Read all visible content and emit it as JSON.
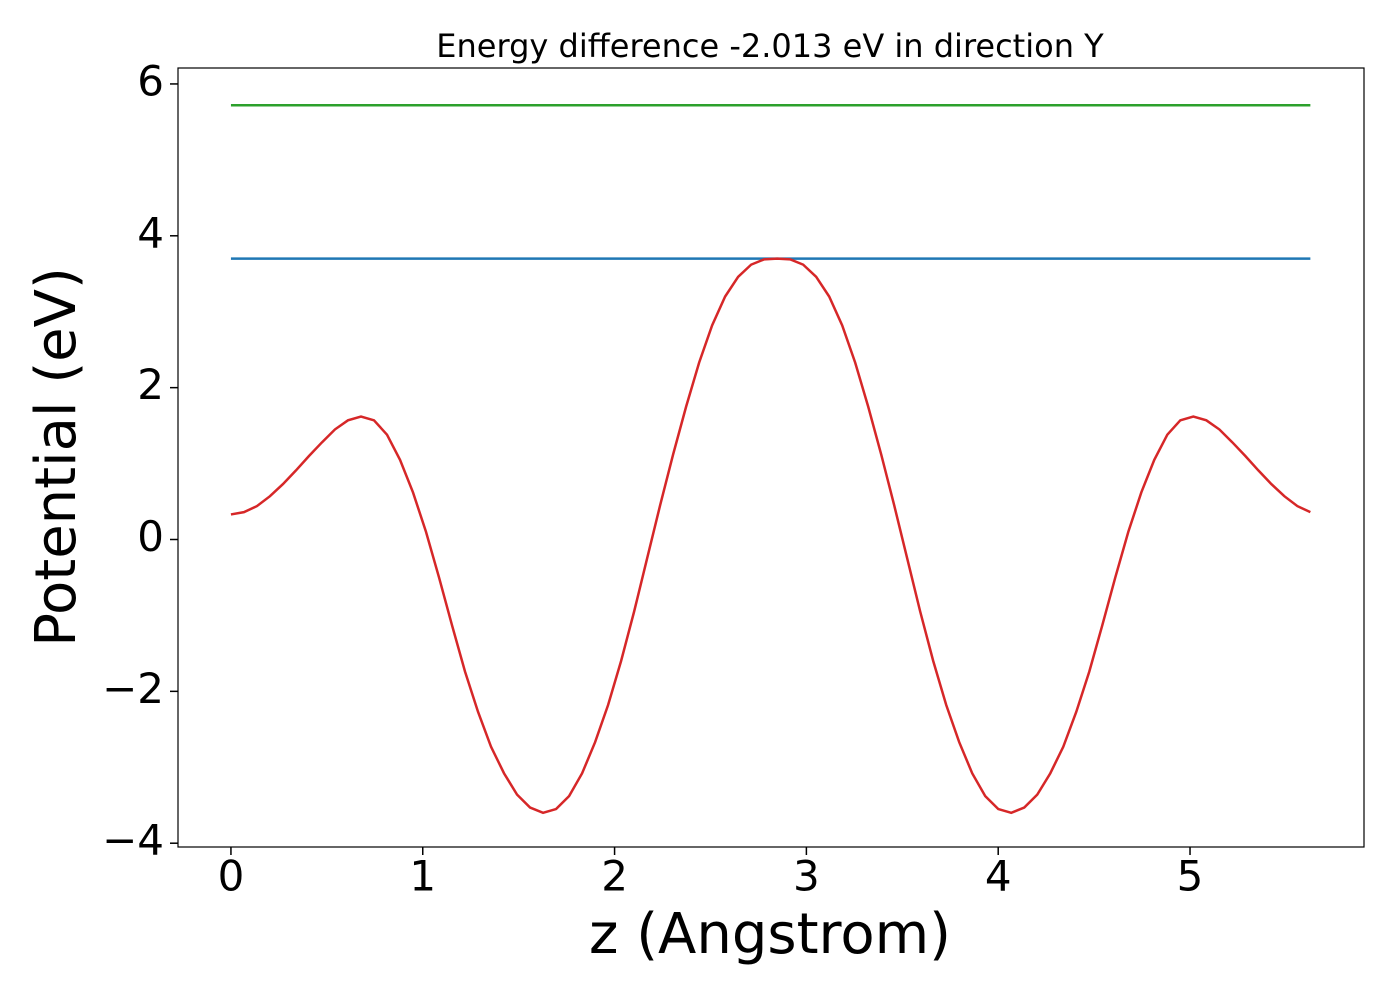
{
  "chart_data": {
    "type": "line",
    "title": "Energy difference -2.013 eV in direction Y",
    "xlabel": "z (Angstrom)",
    "ylabel": "Potential (eV)",
    "xlim": [
      -0.276,
      5.907
    ],
    "ylim": [
      -4.05,
      6.21
    ],
    "xticks": [
      0,
      1,
      2,
      3,
      4,
      5
    ],
    "yticks": [
      {
        "value": -4,
        "label": "−4"
      },
      {
        "value": -2,
        "label": "−2"
      },
      0,
      2,
      4,
      6
    ],
    "series": [
      {
        "color": "#1f77b4",
        "x": [
          0,
          5.6274
        ],
        "values": [
          3.7,
          3.7
        ]
      },
      {
        "color": "#2ca02c",
        "x": [
          0,
          5.6274
        ],
        "values": [
          5.72,
          5.72
        ]
      },
      {
        "color": "#d62728",
        "x": [
          0,
          0.0678,
          0.1356,
          0.2034,
          0.2712,
          0.339,
          0.4068,
          0.4746,
          0.5424,
          0.6102,
          0.678,
          0.7458,
          0.8136,
          0.8814,
          0.9492,
          1.017,
          1.0848,
          1.1526,
          1.2204,
          1.2882,
          1.356,
          1.4238,
          1.4916,
          1.5594,
          1.6272,
          1.695,
          1.7628,
          1.8306,
          1.8984,
          1.9662,
          2.034,
          2.1018,
          2.1696,
          2.2374,
          2.3052,
          2.373,
          2.4408,
          2.5086,
          2.5764,
          2.6442,
          2.712,
          2.7798,
          2.8476,
          2.9154,
          2.9832,
          3.051,
          3.1188,
          3.1866,
          3.2544,
          3.3222,
          3.39,
          3.4578,
          3.5256,
          3.5934,
          3.6612,
          3.729,
          3.7968,
          3.8646,
          3.9324,
          4.0002,
          4.068,
          4.1358,
          4.2036,
          4.2714,
          4.3392,
          4.407,
          4.4748,
          4.5426,
          4.6104,
          4.6782,
          4.746,
          4.8138,
          4.8816,
          4.9494,
          5.0172,
          5.085,
          5.1528,
          5.2206,
          5.2884,
          5.3562,
          5.424,
          5.4918,
          5.5596,
          5.6274
        ],
        "values": [
          0.33,
          0.36,
          0.44,
          0.57,
          0.73,
          0.91,
          1.1,
          1.28,
          1.45,
          1.57,
          1.62,
          1.57,
          1.38,
          1.05,
          0.62,
          0.1,
          -0.5,
          -1.13,
          -1.74,
          -2.27,
          -2.73,
          -3.08,
          -3.36,
          -3.53,
          -3.6,
          -3.55,
          -3.38,
          -3.08,
          -2.67,
          -2.18,
          -1.6,
          -0.95,
          -0.25,
          0.45,
          1.12,
          1.75,
          2.33,
          2.82,
          3.2,
          3.46,
          3.62,
          3.69,
          3.7,
          3.69,
          3.62,
          3.46,
          3.2,
          2.82,
          2.33,
          1.75,
          1.12,
          0.45,
          -0.25,
          -0.95,
          -1.6,
          -2.18,
          -2.67,
          -3.08,
          -3.38,
          -3.55,
          -3.6,
          -3.53,
          -3.36,
          -3.08,
          -2.73,
          -2.27,
          -1.74,
          -1.13,
          -0.5,
          0.1,
          0.62,
          1.05,
          1.38,
          1.57,
          1.62,
          1.57,
          1.45,
          1.28,
          1.1,
          0.91,
          0.73,
          0.57,
          0.44,
          0.36
        ]
      }
    ]
  }
}
